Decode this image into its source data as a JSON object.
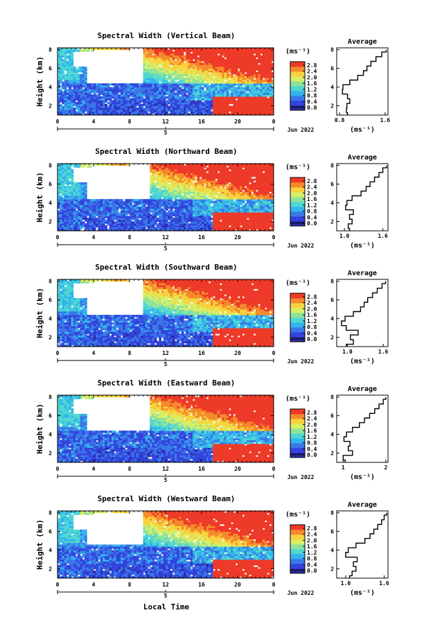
{
  "figure": {
    "xlabel_bottom": "Local Time",
    "date_label": "Jun 2022",
    "ylabel": "Height (km)",
    "colorbar_unit": "(ms⁻¹)",
    "avg_title": "Average",
    "avg_xlabel": "(ms⁻¹)"
  },
  "chart_data": [
    {
      "type": "heatmap",
      "title": "Spectral Width (Vertical Beam)",
      "xlabel": "",
      "ylabel": "Height (km)",
      "x_ticks": [
        "0",
        "4",
        "8",
        "12",
        "16",
        "20",
        "0"
      ],
      "day_label": "5",
      "date_label": "Jun 2022",
      "y_ticks": [
        "2",
        "4",
        "6",
        "8"
      ],
      "xlim": [
        0,
        24
      ],
      "ylim": [
        1,
        8.2
      ],
      "colorbar": {
        "unit": "(ms⁻¹)",
        "ticks": [
          "0.0",
          "0.4",
          "0.8",
          "1.2",
          "1.6",
          "2.0",
          "2.4",
          "2.8"
        ],
        "range": [
          0,
          3.0
        ]
      },
      "colorscale": [
        "#2b2ba8",
        "#3344dd",
        "#3a78e8",
        "#34b4ec",
        "#4fd7d2",
        "#8fe39a",
        "#d8ee66",
        "#f7d23e",
        "#f58a2c",
        "#ee3a28"
      ],
      "average_profile": {
        "title": "Average",
        "xlabel": "(ms⁻¹)",
        "x_ticks": [
          "0.8",
          "1.6"
        ],
        "x_tick_values": [
          0.8,
          1.6
        ],
        "xlim": [
          0.75,
          1.65
        ],
        "y_ticks": [
          "2",
          "4",
          "6",
          "8"
        ],
        "ylim": [
          1,
          8.2
        ],
        "heights": [
          1.0,
          1.5,
          2.0,
          2.5,
          3.0,
          3.5,
          4.0,
          4.5,
          5.0,
          5.5,
          6.0,
          6.5,
          7.0,
          7.5,
          8.0
        ],
        "values": [
          0.94,
          0.92,
          0.93,
          0.98,
          0.94,
          0.85,
          0.86,
          0.98,
          1.12,
          1.22,
          1.28,
          1.35,
          1.44,
          1.54,
          1.62
        ]
      }
    },
    {
      "type": "heatmap",
      "title": "Spectral Width (Northward Beam)",
      "xlabel": "",
      "ylabel": "Height (km)",
      "x_ticks": [
        "0",
        "4",
        "8",
        "12",
        "16",
        "20",
        "0"
      ],
      "day_label": "5",
      "date_label": "Jun 2022",
      "y_ticks": [
        "2",
        "4",
        "6",
        "8"
      ],
      "xlim": [
        0,
        24
      ],
      "ylim": [
        1,
        8.2
      ],
      "colorbar": {
        "unit": "(ms⁻¹)",
        "ticks": [
          "0.0",
          "0.4",
          "0.8",
          "1.2",
          "1.6",
          "2.0",
          "2.4",
          "2.8"
        ],
        "range": [
          0,
          3.0
        ]
      },
      "colorscale": [
        "#2b2ba8",
        "#3344dd",
        "#3a78e8",
        "#34b4ec",
        "#4fd7d2",
        "#8fe39a",
        "#d8ee66",
        "#f7d23e",
        "#f58a2c",
        "#ee3a28"
      ],
      "average_profile": {
        "title": "Average",
        "xlabel": "(ms⁻¹)",
        "x_ticks": [
          "1.0",
          "1.6"
        ],
        "x_tick_values": [
          1.0,
          1.6
        ],
        "xlim": [
          0.88,
          1.68
        ],
        "y_ticks": [
          "2",
          "4",
          "6",
          "8"
        ],
        "ylim": [
          1,
          8.2
        ],
        "heights": [
          1.0,
          1.5,
          2.0,
          2.5,
          3.0,
          3.5,
          4.0,
          4.5,
          5.0,
          5.5,
          6.0,
          6.5,
          7.0,
          7.5,
          8.0
        ],
        "values": [
          1.08,
          1.06,
          1.12,
          1.08,
          1.14,
          1.02,
          1.04,
          1.12,
          1.26,
          1.34,
          1.4,
          1.47,
          1.54,
          1.6,
          1.66
        ]
      }
    },
    {
      "type": "heatmap",
      "title": "Spectral Width (Southward Beam)",
      "xlabel": "",
      "ylabel": "Height (km)",
      "x_ticks": [
        "0",
        "4",
        "8",
        "12",
        "16",
        "20",
        "0"
      ],
      "day_label": "5",
      "date_label": "Jun 2022",
      "y_ticks": [
        "2",
        "4",
        "6",
        "8"
      ],
      "xlim": [
        0,
        24
      ],
      "ylim": [
        1,
        8.2
      ],
      "colorbar": {
        "unit": "(ms⁻¹)",
        "ticks": [
          "0.0",
          "0.4",
          "0.8",
          "1.2",
          "1.6",
          "2.0",
          "2.4",
          "2.8"
        ],
        "range": [
          0,
          3.0
        ]
      },
      "colorscale": [
        "#2b2ba8",
        "#3344dd",
        "#3a78e8",
        "#34b4ec",
        "#4fd7d2",
        "#8fe39a",
        "#d8ee66",
        "#f7d23e",
        "#f58a2c",
        "#ee3a28"
      ],
      "average_profile": {
        "title": "Average",
        "xlabel": "(ms⁻¹)",
        "x_ticks": [
          "1.0",
          "1.6"
        ],
        "x_tick_values": [
          1.0,
          1.6
        ],
        "xlim": [
          0.82,
          1.68
        ],
        "y_ticks": [
          "2",
          "4",
          "6",
          "8"
        ],
        "ylim": [
          1,
          8.2
        ],
        "heights": [
          1.0,
          1.5,
          2.0,
          2.5,
          3.0,
          3.5,
          4.0,
          4.5,
          5.0,
          5.5,
          6.0,
          6.5,
          7.0,
          7.5,
          8.0
        ],
        "values": [
          0.98,
          1.1,
          1.05,
          1.18,
          0.98,
          0.9,
          0.96,
          1.1,
          1.22,
          1.28,
          1.34,
          1.42,
          1.5,
          1.58,
          1.64
        ]
      }
    },
    {
      "type": "heatmap",
      "title": "Spectral Width (Eastward Beam)",
      "xlabel": "",
      "ylabel": "Height (km)",
      "x_ticks": [
        "0",
        "4",
        "8",
        "12",
        "16",
        "20",
        "0"
      ],
      "day_label": "5",
      "date_label": "Jun 2022",
      "y_ticks": [
        "2",
        "4",
        "6",
        "8"
      ],
      "xlim": [
        0,
        24
      ],
      "ylim": [
        1,
        8.2
      ],
      "colorbar": {
        "unit": "(ms⁻¹)",
        "ticks": [
          "0.0",
          "0.4",
          "0.8",
          "1.2",
          "1.6",
          "2.0",
          "2.4",
          "2.8"
        ],
        "range": [
          0,
          3.0
        ]
      },
      "colorscale": [
        "#2b2ba8",
        "#3344dd",
        "#3a78e8",
        "#34b4ec",
        "#4fd7d2",
        "#8fe39a",
        "#d8ee66",
        "#f7d23e",
        "#f58a2c",
        "#ee3a28"
      ],
      "average_profile": {
        "title": "Average",
        "xlabel": "(ms⁻¹)",
        "x_ticks": [
          "1",
          "2"
        ],
        "x_tick_values": [
          1,
          2
        ],
        "xlim": [
          0.85,
          2.05
        ],
        "y_ticks": [
          "2",
          "4",
          "6",
          "8"
        ],
        "ylim": [
          1,
          8.2
        ],
        "heights": [
          1.0,
          1.5,
          2.0,
          2.5,
          3.0,
          3.5,
          4.0,
          4.5,
          5.0,
          5.5,
          6.0,
          6.5,
          7.0,
          7.5,
          8.0
        ],
        "values": [
          1.05,
          1.0,
          1.22,
          1.12,
          1.16,
          1.02,
          1.08,
          1.22,
          1.38,
          1.5,
          1.62,
          1.74,
          1.84,
          1.94,
          2.0
        ]
      }
    },
    {
      "type": "heatmap",
      "title": "Spectral Width (Westward Beam)",
      "xlabel": "Local Time",
      "ylabel": "Height (km)",
      "x_ticks": [
        "0",
        "4",
        "8",
        "12",
        "16",
        "20",
        "0"
      ],
      "day_label": "5",
      "date_label": "Jun 2022",
      "y_ticks": [
        "2",
        "4",
        "6",
        "8"
      ],
      "xlim": [
        0,
        24
      ],
      "ylim": [
        1,
        8.2
      ],
      "colorbar": {
        "unit": "(ms⁻¹)",
        "ticks": [
          "0.0",
          "0.4",
          "0.8",
          "1.2",
          "1.6",
          "2.0",
          "2.4",
          "2.8"
        ],
        "range": [
          0,
          3.0
        ]
      },
      "colorscale": [
        "#2b2ba8",
        "#3344dd",
        "#3a78e8",
        "#34b4ec",
        "#4fd7d2",
        "#8fe39a",
        "#d8ee66",
        "#f7d23e",
        "#f58a2c",
        "#ee3a28"
      ],
      "average_profile": {
        "title": "Average",
        "xlabel": "(ms⁻¹)",
        "x_ticks": [
          "1.0",
          "1.6"
        ],
        "x_tick_values": [
          1.0,
          1.6
        ],
        "xlim": [
          0.86,
          1.66
        ],
        "y_ticks": [
          "2",
          "4",
          "6",
          "8"
        ],
        "ylim": [
          1,
          8.2
        ],
        "heights": [
          1.0,
          1.5,
          2.0,
          2.5,
          3.0,
          3.5,
          4.0,
          4.5,
          5.0,
          5.5,
          6.0,
          6.5,
          7.0,
          7.5,
          8.0
        ],
        "values": [
          1.06,
          1.1,
          1.16,
          1.12,
          1.18,
          1.0,
          1.04,
          1.16,
          1.3,
          1.38,
          1.44,
          1.5,
          1.56,
          1.6,
          1.64
        ]
      }
    }
  ]
}
